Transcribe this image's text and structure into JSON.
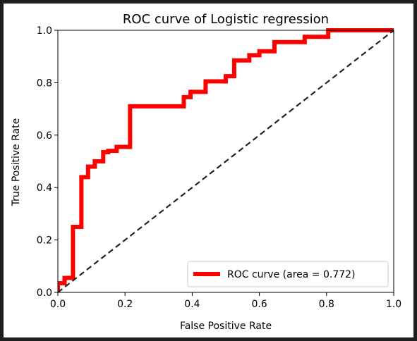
{
  "chart_data": {
    "type": "line",
    "title": "ROC curve of Logistic regression",
    "xlabel": "False Positive Rate",
    "ylabel": "True Positive Rate",
    "xlim": [
      0.0,
      1.0
    ],
    "ylim": [
      0.0,
      1.0
    ],
    "xticks": [
      "0.0",
      "0.2",
      "0.4",
      "0.6",
      "0.8",
      "1.0"
    ],
    "yticks": [
      "0.0",
      "0.2",
      "0.4",
      "0.6",
      "0.8",
      "1.0"
    ],
    "grid": false,
    "legend_position": "lower-right",
    "series": [
      {
        "name": "ROC curve (area = 0.772)",
        "color": "#ff0000",
        "style": "solid",
        "x": [
          0.0,
          0.0,
          0.02,
          0.02,
          0.045,
          0.045,
          0.07,
          0.07,
          0.09,
          0.09,
          0.11,
          0.11,
          0.135,
          0.135,
          0.15,
          0.15,
          0.175,
          0.175,
          0.215,
          0.215,
          0.375,
          0.375,
          0.395,
          0.395,
          0.44,
          0.44,
          0.5,
          0.5,
          0.525,
          0.525,
          0.57,
          0.57,
          0.6,
          0.6,
          0.645,
          0.645,
          0.735,
          0.735,
          0.805,
          0.805,
          1.0
        ],
        "y": [
          0.0,
          0.035,
          0.035,
          0.055,
          0.055,
          0.25,
          0.25,
          0.44,
          0.44,
          0.48,
          0.48,
          0.5,
          0.5,
          0.535,
          0.535,
          0.54,
          0.54,
          0.555,
          0.555,
          0.71,
          0.71,
          0.745,
          0.745,
          0.765,
          0.765,
          0.805,
          0.805,
          0.825,
          0.825,
          0.885,
          0.885,
          0.905,
          0.905,
          0.92,
          0.92,
          0.955,
          0.955,
          0.975,
          0.975,
          1.0,
          1.0
        ]
      },
      {
        "name": "",
        "color": "#222222",
        "style": "dashed",
        "x": [
          0.0,
          1.0
        ],
        "y": [
          0.0,
          1.0
        ]
      }
    ]
  }
}
